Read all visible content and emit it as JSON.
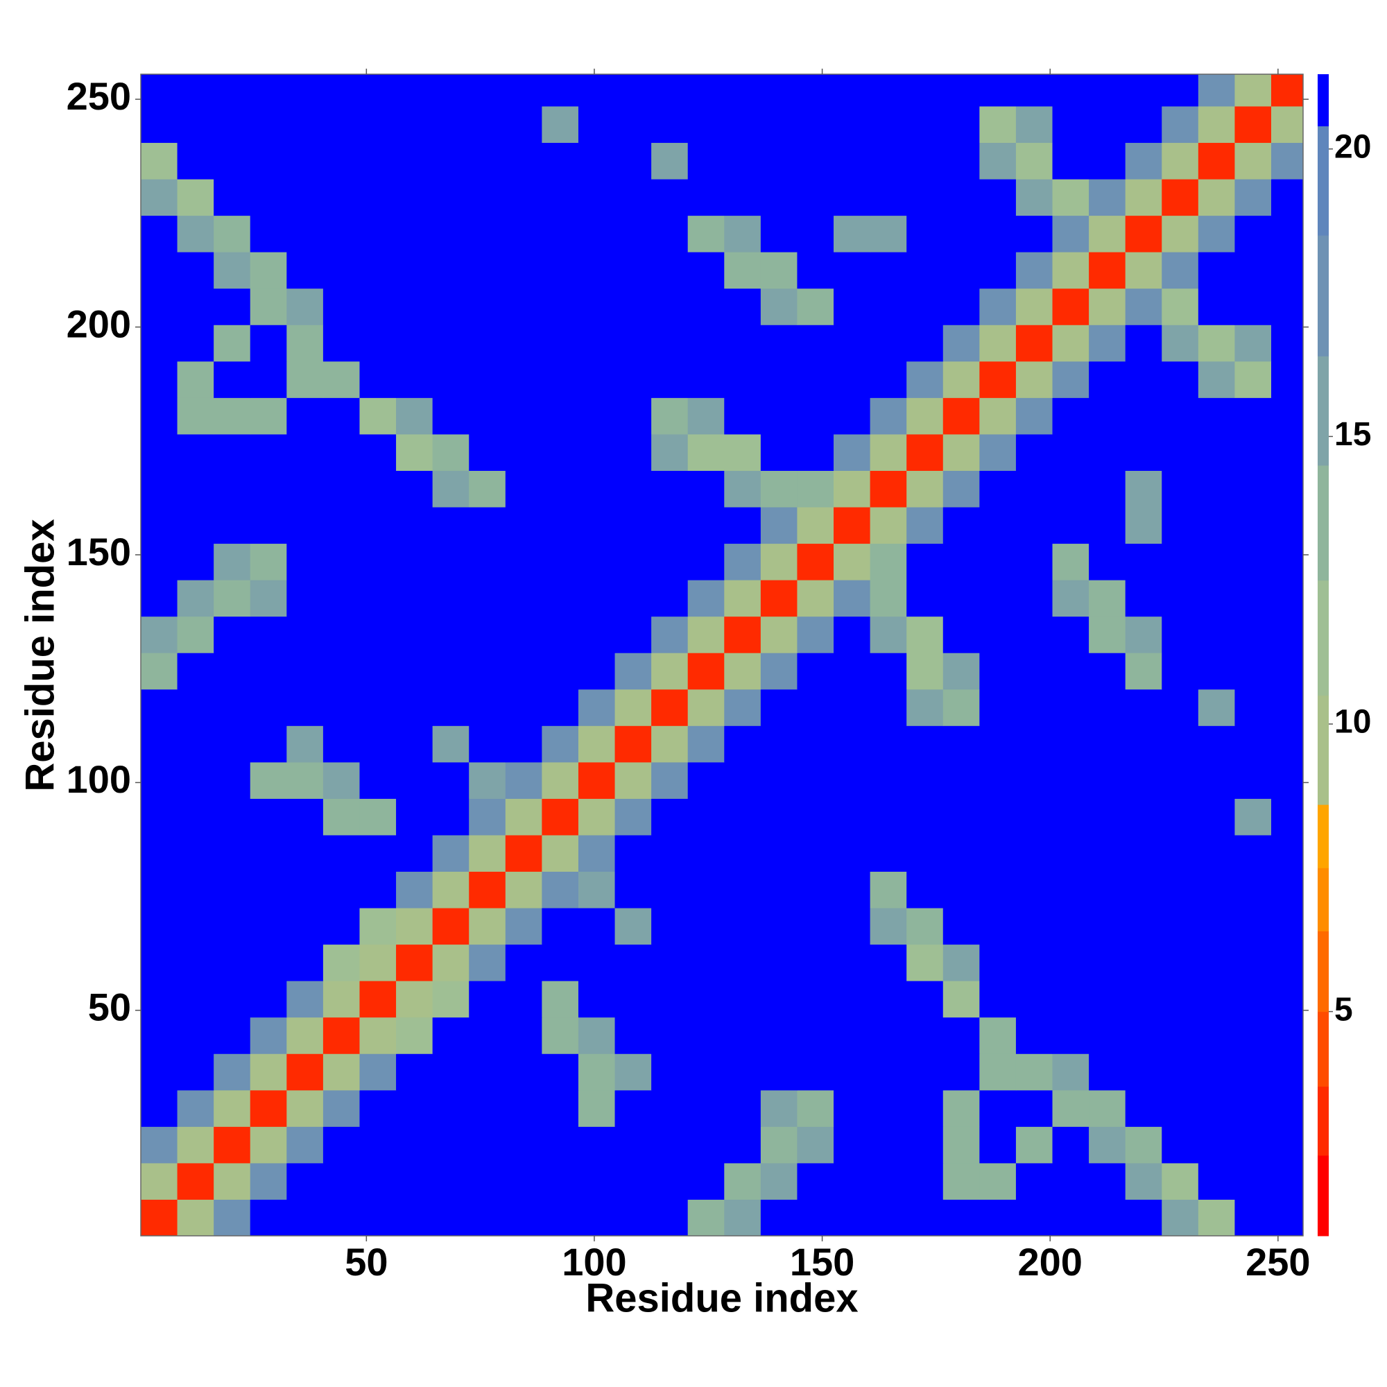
{
  "chart_data": {
    "type": "heatmap",
    "xlabel": "Residue index",
    "ylabel": "Residue index",
    "xlim": [
      0.5,
      255.5
    ],
    "ylim": [
      0.5,
      255.5
    ],
    "xticks": [
      50,
      100,
      150,
      200,
      250
    ],
    "yticks": [
      50,
      100,
      150,
      200,
      250
    ],
    "zlim": [
      1.1,
      21.3
    ],
    "zticks": [
      5,
      10,
      15,
      20
    ],
    "colorscale": [
      [
        1.1,
        "#ff0000"
      ],
      [
        2.5,
        "#ff2a00"
      ],
      [
        3.7,
        "#ff4c00"
      ],
      [
        5,
        "#ff6a00"
      ],
      [
        6.4,
        "#ff8c00"
      ],
      [
        7.5,
        "#ffa500"
      ],
      [
        8.6,
        "#a9c08a"
      ],
      [
        10.5,
        "#9fbf94"
      ],
      [
        12.5,
        "#8fb59c"
      ],
      [
        14.5,
        "#7fa4a8"
      ],
      [
        16.4,
        "#6e92b4"
      ],
      [
        18.5,
        "#5f86bc"
      ],
      [
        20.4,
        "#0000ff"
      ]
    ],
    "x": [
      4.5,
      12.5,
      20.5,
      28.5,
      36.5,
      44.5,
      52.5,
      60.5,
      68.5,
      76.5,
      84.5,
      92.5,
      100.5,
      108.5,
      116.5,
      124.5,
      132.5,
      140.5,
      148.5,
      156.5,
      164.5,
      172.5,
      180.5,
      188.5,
      196.5,
      204.5,
      212.5,
      220.5,
      228.5,
      236.5,
      244.5,
      252.5
    ],
    "y": [
      4.5,
      12.5,
      20.5,
      28.5,
      36.5,
      44.5,
      52.5,
      60.5,
      68.5,
      76.5,
      84.5,
      92.5,
      100.5,
      108.5,
      116.5,
      124.5,
      132.5,
      140.5,
      148.5,
      156.5,
      164.5,
      172.5,
      180.5,
      188.5,
      196.5,
      204.5,
      212.5,
      220.5,
      228.5,
      236.5,
      244.5,
      252.5
    ],
    "z": [
      [
        3,
        10,
        17,
        21,
        21,
        21,
        21,
        21,
        21,
        21,
        21,
        21,
        21,
        21,
        21,
        14,
        16,
        21,
        21,
        21,
        21,
        21,
        21,
        21,
        21,
        21,
        21,
        21,
        15,
        12,
        21,
        21
      ],
      [
        10,
        3,
        10,
        17,
        21,
        21,
        21,
        21,
        21,
        21,
        21,
        21,
        21,
        21,
        21,
        21,
        13,
        15,
        21,
        21,
        21,
        21,
        14,
        13,
        21,
        21,
        21,
        15,
        12,
        21,
        21,
        21
      ],
      [
        17,
        10,
        3,
        10,
        17,
        21,
        21,
        21,
        21,
        21,
        21,
        21,
        21,
        21,
        21,
        21,
        21,
        13,
        16,
        21,
        21,
        21,
        14,
        21,
        13,
        21,
        16,
        13,
        21,
        21,
        21,
        21
      ],
      [
        21,
        17,
        10,
        3,
        10,
        17,
        21,
        21,
        21,
        21,
        21,
        21,
        14,
        21,
        21,
        21,
        21,
        16,
        14,
        21,
        21,
        21,
        13,
        21,
        21,
        14,
        13,
        21,
        21,
        21,
        21,
        21
      ],
      [
        21,
        21,
        17,
        10,
        3,
        10,
        17,
        21,
        21,
        21,
        21,
        21,
        13,
        15,
        21,
        21,
        21,
        21,
        21,
        21,
        21,
        21,
        21,
        13,
        13,
        15,
        21,
        21,
        21,
        21,
        21,
        21
      ],
      [
        21,
        21,
        21,
        17,
        10,
        3,
        10,
        11,
        21,
        21,
        21,
        13,
        15,
        21,
        21,
        21,
        21,
        21,
        21,
        21,
        21,
        21,
        21,
        14,
        21,
        21,
        21,
        21,
        21,
        21,
        21,
        21
      ],
      [
        21,
        21,
        21,
        21,
        17,
        10,
        3,
        10,
        11,
        21,
        21,
        14,
        21,
        21,
        21,
        21,
        21,
        21,
        21,
        21,
        21,
        21,
        12,
        21,
        21,
        21,
        21,
        21,
        21,
        21,
        21,
        21
      ],
      [
        21,
        21,
        21,
        21,
        21,
        11,
        10,
        3,
        10,
        17,
        21,
        21,
        21,
        21,
        21,
        21,
        21,
        21,
        21,
        21,
        21,
        12,
        15,
        21,
        21,
        21,
        21,
        21,
        21,
        21,
        21,
        21
      ],
      [
        21,
        21,
        21,
        21,
        21,
        21,
        11,
        10,
        3,
        10,
        17,
        21,
        21,
        16,
        21,
        21,
        21,
        21,
        21,
        21,
        15,
        13,
        21,
        21,
        21,
        21,
        21,
        21,
        21,
        21,
        21,
        21
      ],
      [
        21,
        21,
        21,
        21,
        21,
        21,
        21,
        17,
        10,
        3,
        10,
        17,
        16,
        21,
        21,
        21,
        21,
        21,
        21,
        21,
        13,
        21,
        21,
        21,
        21,
        21,
        21,
        21,
        21,
        21,
        21,
        21
      ],
      [
        21,
        21,
        21,
        21,
        21,
        21,
        21,
        21,
        17,
        10,
        3,
        10,
        17,
        21,
        21,
        21,
        21,
        21,
        21,
        21,
        21,
        21,
        21,
        21,
        21,
        21,
        21,
        21,
        21,
        21,
        21,
        21
      ],
      [
        21,
        21,
        21,
        21,
        21,
        13,
        14,
        21,
        21,
        17,
        10,
        3,
        10,
        17,
        21,
        21,
        21,
        21,
        21,
        21,
        21,
        21,
        21,
        21,
        21,
        21,
        21,
        21,
        21,
        21,
        15,
        21
      ],
      [
        21,
        21,
        21,
        14,
        13,
        15,
        21,
        21,
        21,
        16,
        17,
        10,
        3,
        10,
        17,
        21,
        21,
        21,
        21,
        21,
        21,
        21,
        21,
        21,
        21,
        21,
        21,
        21,
        21,
        21,
        21,
        21
      ],
      [
        21,
        21,
        21,
        21,
        15,
        21,
        21,
        21,
        16,
        21,
        21,
        17,
        10,
        3,
        10,
        17,
        21,
        21,
        21,
        21,
        21,
        21,
        21,
        21,
        21,
        21,
        21,
        21,
        21,
        21,
        21,
        21
      ],
      [
        21,
        21,
        21,
        21,
        21,
        21,
        21,
        21,
        21,
        21,
        21,
        21,
        17,
        10,
        3,
        10,
        17,
        21,
        21,
        21,
        21,
        15,
        13,
        21,
        21,
        21,
        21,
        21,
        21,
        16,
        21,
        21
      ],
      [
        14,
        21,
        21,
        21,
        21,
        21,
        21,
        21,
        21,
        21,
        21,
        21,
        21,
        17,
        10,
        3,
        10,
        17,
        21,
        21,
        21,
        12,
        15,
        21,
        21,
        21,
        21,
        13,
        21,
        21,
        21,
        21
      ],
      [
        16,
        13,
        21,
        21,
        21,
        21,
        21,
        21,
        21,
        21,
        21,
        21,
        21,
        21,
        17,
        10,
        3,
        10,
        17,
        21,
        15,
        12,
        21,
        21,
        21,
        21,
        13,
        15,
        21,
        21,
        21,
        21
      ],
      [
        21,
        15,
        13,
        16,
        21,
        21,
        21,
        21,
        21,
        21,
        21,
        21,
        21,
        21,
        21,
        17,
        10,
        3,
        10,
        17,
        13,
        21,
        21,
        21,
        21,
        15,
        14,
        21,
        21,
        21,
        21,
        21
      ],
      [
        21,
        21,
        16,
        14,
        21,
        21,
        21,
        21,
        21,
        21,
        21,
        21,
        21,
        21,
        21,
        21,
        17,
        10,
        3,
        10,
        13,
        21,
        21,
        21,
        21,
        14,
        21,
        21,
        21,
        21,
        21,
        21
      ],
      [
        21,
        21,
        21,
        21,
        21,
        21,
        21,
        21,
        21,
        21,
        21,
        21,
        21,
        21,
        21,
        21,
        21,
        17,
        10,
        3,
        10,
        17,
        21,
        21,
        21,
        21,
        21,
        15,
        21,
        21,
        21,
        21
      ],
      [
        21,
        21,
        21,
        21,
        21,
        21,
        21,
        21,
        15,
        13,
        21,
        21,
        21,
        21,
        21,
        21,
        15,
        13,
        13,
        10,
        3,
        10,
        17,
        21,
        21,
        21,
        21,
        16,
        21,
        21,
        21,
        21
      ],
      [
        21,
        21,
        21,
        21,
        21,
        21,
        21,
        12,
        13,
        21,
        21,
        21,
        21,
        21,
        15,
        12,
        12,
        21,
        21,
        17,
        10,
        3,
        10,
        17,
        21,
        21,
        21,
        21,
        21,
        21,
        21,
        21
      ],
      [
        21,
        14,
        14,
        13,
        21,
        21,
        12,
        15,
        21,
        21,
        21,
        21,
        21,
        21,
        13,
        15,
        21,
        21,
        21,
        21,
        17,
        10,
        3,
        10,
        17,
        21,
        21,
        21,
        21,
        21,
        21,
        21
      ],
      [
        21,
        13,
        21,
        21,
        13,
        14,
        21,
        21,
        21,
        21,
        21,
        21,
        21,
        21,
        21,
        21,
        21,
        21,
        21,
        21,
        21,
        17,
        10,
        3,
        10,
        17,
        21,
        21,
        21,
        15,
        12,
        21
      ],
      [
        21,
        21,
        13,
        21,
        13,
        21,
        21,
        21,
        21,
        21,
        21,
        21,
        21,
        21,
        21,
        21,
        21,
        21,
        21,
        21,
        21,
        21,
        17,
        10,
        3,
        10,
        17,
        21,
        15,
        12,
        15,
        21
      ],
      [
        21,
        21,
        21,
        14,
        15,
        21,
        21,
        21,
        21,
        21,
        21,
        21,
        21,
        21,
        21,
        21,
        21,
        15,
        14,
        21,
        21,
        21,
        21,
        17,
        10,
        3,
        10,
        17,
        12,
        21,
        21,
        21
      ],
      [
        21,
        21,
        16,
        13,
        21,
        21,
        21,
        21,
        21,
        21,
        21,
        21,
        21,
        21,
        21,
        21,
        13,
        14,
        21,
        21,
        21,
        21,
        21,
        21,
        17,
        10,
        3,
        10,
        17,
        21,
        21,
        21
      ],
      [
        21,
        15,
        13,
        21,
        21,
        21,
        21,
        21,
        21,
        21,
        21,
        21,
        21,
        21,
        21,
        13,
        15,
        21,
        21,
        15,
        16,
        21,
        21,
        21,
        21,
        17,
        10,
        3,
        10,
        17,
        21,
        21
      ],
      [
        15,
        12,
        21,
        21,
        21,
        21,
        21,
        21,
        21,
        21,
        21,
        21,
        21,
        21,
        21,
        21,
        21,
        21,
        21,
        21,
        21,
        21,
        21,
        21,
        15,
        12,
        17,
        10,
        3,
        10,
        17,
        21
      ],
      [
        12,
        21,
        21,
        21,
        21,
        21,
        21,
        21,
        21,
        21,
        21,
        21,
        21,
        21,
        16,
        21,
        21,
        21,
        21,
        21,
        21,
        21,
        21,
        15,
        12,
        21,
        21,
        17,
        10,
        3,
        10,
        17
      ],
      [
        21,
        21,
        21,
        21,
        21,
        21,
        21,
        21,
        21,
        21,
        21,
        15,
        21,
        21,
        21,
        21,
        21,
        21,
        21,
        21,
        21,
        21,
        21,
        12,
        15,
        21,
        21,
        21,
        17,
        10,
        3,
        10
      ],
      [
        21,
        21,
        21,
        21,
        21,
        21,
        21,
        21,
        21,
        21,
        21,
        21,
        21,
        21,
        21,
        21,
        21,
        21,
        21,
        21,
        21,
        21,
        21,
        21,
        21,
        21,
        21,
        21,
        21,
        17,
        10,
        3
      ]
    ]
  }
}
